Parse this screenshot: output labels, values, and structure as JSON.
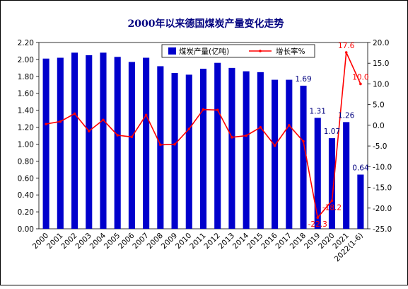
{
  "chart_data": {
    "type": "bar+line",
    "title": "2000年以来德国煤炭产量变化走势",
    "categories": [
      "2000",
      "2001",
      "2002",
      "2003",
      "2004",
      "2005",
      "2006",
      "2007",
      "2008",
      "2009",
      "2010",
      "2011",
      "2012",
      "2013",
      "2014",
      "2015",
      "2016",
      "2017",
      "2018",
      "2019",
      "2020",
      "2021",
      "2022(1-6)"
    ],
    "series": [
      {
        "name": "煤炭产量(亿吨)",
        "type": "bar",
        "axis": "left",
        "color": "#0000cc",
        "values": [
          2.01,
          2.02,
          2.08,
          2.05,
          2.08,
          2.03,
          1.97,
          2.02,
          1.92,
          1.84,
          1.82,
          1.89,
          1.96,
          1.9,
          1.86,
          1.85,
          1.76,
          1.76,
          1.69,
          1.31,
          1.07,
          1.26,
          0.64
        ]
      },
      {
        "name": "增长率%",
        "type": "line",
        "axis": "right",
        "color": "#ff0000",
        "values": [
          0.3,
          0.9,
          2.8,
          -1.4,
          1.3,
          -2.4,
          -2.8,
          2.5,
          -4.7,
          -4.6,
          -0.9,
          3.8,
          3.7,
          -2.9,
          -2.5,
          -0.5,
          -4.9,
          0.0,
          -3.9,
          -22.3,
          -18.2,
          17.6,
          10.0
        ]
      }
    ],
    "data_labels": {
      "bar": [
        {
          "index": 18,
          "text": "1.69"
        },
        {
          "index": 19,
          "text": "1.31"
        },
        {
          "index": 20,
          "text": "1.07"
        },
        {
          "index": 21,
          "text": "1.26"
        },
        {
          "index": 22,
          "text": "0.64"
        }
      ],
      "line": [
        {
          "index": 19,
          "text": "-22.3"
        },
        {
          "index": 20,
          "text": "-18.2"
        },
        {
          "index": 21,
          "text": "17.6"
        },
        {
          "index": 22,
          "text": "10.0"
        }
      ]
    },
    "y_left": {
      "min": 0,
      "max": 2.2,
      "step": 0.2,
      "decimals": 2
    },
    "y_right": {
      "min": -25,
      "max": 20,
      "step": 5,
      "decimals": 1
    },
    "grid": false,
    "legend_position": "top-right"
  }
}
